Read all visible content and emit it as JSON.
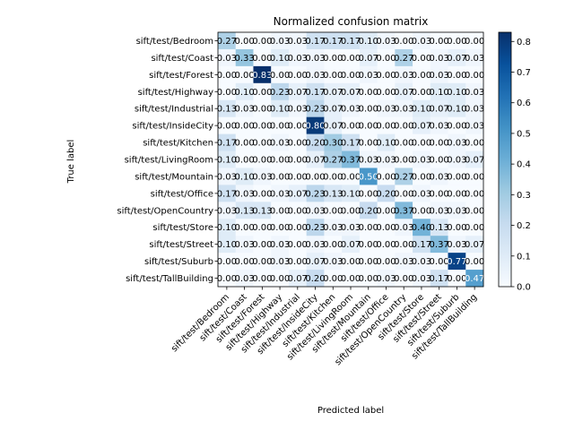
{
  "chart_data": {
    "type": "heatmap",
    "title": "Normalized confusion matrix",
    "xlabel": "Predicted label",
    "ylabel": "True label",
    "categories": [
      "sift/test/Bedroom",
      "sift/test/Coast",
      "sift/test/Forest",
      "sift/test/Highway",
      "sift/test/Industrial",
      "sift/test/InsideCity",
      "sift/test/Kitchen",
      "sift/test/LivingRoom",
      "sift/test/Mountain",
      "sift/test/Office",
      "sift/test/OpenCountry",
      "sift/test/Store",
      "sift/test/Street",
      "sift/test/Suburb",
      "sift/test/TallBuilding"
    ],
    "values": [
      [
        0.27,
        0.0,
        0.0,
        0.03,
        0.03,
        0.17,
        0.17,
        0.17,
        0.1,
        0.03,
        0.0,
        0.03,
        0.0,
        0.0,
        0.0
      ],
      [
        0.03,
        0.33,
        0.0,
        0.1,
        0.03,
        0.03,
        0.0,
        0.0,
        0.07,
        0.0,
        0.27,
        0.0,
        0.03,
        0.07,
        0.03
      ],
      [
        0.0,
        0.0,
        0.83,
        0.0,
        0.0,
        0.03,
        0.0,
        0.0,
        0.03,
        0.0,
        0.03,
        0.0,
        0.03,
        0.0,
        0.0
      ],
      [
        0.0,
        0.1,
        0.0,
        0.23,
        0.07,
        0.17,
        0.07,
        0.07,
        0.0,
        0.0,
        0.07,
        0.0,
        0.1,
        0.1,
        0.03
      ],
      [
        0.13,
        0.03,
        0.0,
        0.1,
        0.03,
        0.23,
        0.07,
        0.03,
        0.0,
        0.03,
        0.03,
        0.1,
        0.07,
        0.1,
        0.03
      ],
      [
        0.0,
        0.0,
        0.0,
        0.0,
        0.0,
        0.8,
        0.07,
        0.0,
        0.0,
        0.0,
        0.0,
        0.07,
        0.03,
        0.0,
        0.03
      ],
      [
        0.17,
        0.0,
        0.0,
        0.03,
        0.0,
        0.2,
        0.3,
        0.17,
        0.0,
        0.1,
        0.0,
        0.0,
        0.0,
        0.03,
        0.0
      ],
      [
        0.1,
        0.0,
        0.0,
        0.0,
        0.0,
        0.07,
        0.27,
        0.37,
        0.03,
        0.03,
        0.0,
        0.03,
        0.0,
        0.03,
        0.07
      ],
      [
        0.03,
        0.1,
        0.03,
        0.0,
        0.0,
        0.0,
        0.0,
        0.0,
        0.5,
        0.0,
        0.27,
        0.0,
        0.03,
        0.0,
        0.0
      ],
      [
        0.17,
        0.03,
        0.0,
        0.03,
        0.07,
        0.23,
        0.13,
        0.1,
        0.0,
        0.2,
        0.0,
        0.03,
        0.0,
        0.0,
        0.0
      ],
      [
        0.03,
        0.13,
        0.13,
        0.0,
        0.0,
        0.03,
        0.0,
        0.0,
        0.2,
        0.0,
        0.37,
        0.0,
        0.03,
        0.03,
        0.0
      ],
      [
        0.1,
        0.0,
        0.0,
        0.0,
        0.0,
        0.23,
        0.03,
        0.03,
        0.0,
        0.0,
        0.03,
        0.4,
        0.13,
        0.0,
        0.0
      ],
      [
        0.1,
        0.03,
        0.0,
        0.03,
        0.0,
        0.03,
        0.0,
        0.07,
        0.0,
        0.0,
        0.0,
        0.17,
        0.37,
        0.03,
        0.07
      ],
      [
        0.0,
        0.0,
        0.0,
        0.03,
        0.0,
        0.07,
        0.03,
        0.0,
        0.0,
        0.0,
        0.03,
        0.03,
        0.0,
        0.77,
        0.0
      ],
      [
        0.0,
        0.03,
        0.0,
        0.0,
        0.07,
        0.2,
        0.0,
        0.0,
        0.0,
        0.03,
        0.0,
        0.03,
        0.17,
        0.0,
        0.47
      ]
    ],
    "zlim": [
      0.0,
      0.83
    ],
    "colorbar_ticks": [
      "0.0",
      "0.1",
      "0.2",
      "0.3",
      "0.4",
      "0.5",
      "0.6",
      "0.7",
      "0.8"
    ],
    "colormap": "Blues",
    "colormap_stops": [
      "#f7fbff",
      "#deebf7",
      "#c6dbef",
      "#9ecae1",
      "#6baed6",
      "#4292c6",
      "#2171b5",
      "#08519c",
      "#08306b"
    ],
    "grid": false
  }
}
